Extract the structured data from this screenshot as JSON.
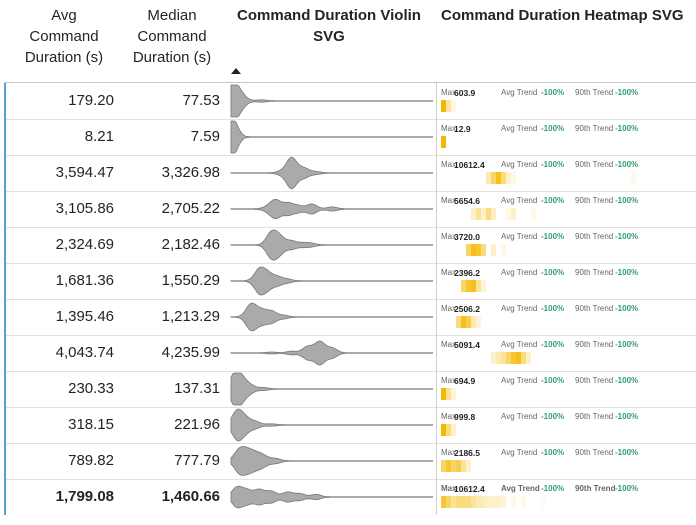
{
  "headers": {
    "avg": [
      "Avg",
      "Command",
      "Duration (s)"
    ],
    "median": [
      "Median",
      "Command",
      "Duration (s)"
    ],
    "violin": [
      "Command Duration Violin",
      "SVG"
    ],
    "heatmap": "Command Duration Heatmap SVG"
  },
  "labels": {
    "max": "Max",
    "avg_trend": "Avg Trend",
    "p90_trend": "90th Trend"
  },
  "colors": {
    "accent": "#55a0d6",
    "trend_green": "#2f9e6e",
    "heat": "#f5b800",
    "violin": "#aaaaaa"
  },
  "rows": [
    {
      "avg": "179.20",
      "median": "77.53",
      "max": "603.9",
      "avg_trend": "-100%",
      "p90_trend": "-100%",
      "violin": [
        [
          0.01,
          0.9
        ],
        [
          0.03,
          0.35
        ],
        [
          0.06,
          0.2
        ],
        [
          0.15,
          0.06
        ]
      ],
      "heat": [
        [
          0,
          1.0
        ],
        [
          1,
          0.35
        ],
        [
          2,
          0.1
        ]
      ]
    },
    {
      "avg": "8.21",
      "median": "7.59",
      "max": "12.9",
      "avg_trend": "-100%",
      "p90_trend": "-100%",
      "violin": [
        [
          0.005,
          1.0
        ],
        [
          0.015,
          0.2
        ]
      ],
      "heat": [
        [
          0,
          1.0
        ]
      ]
    },
    {
      "avg": "3,594.47",
      "median": "3,326.98",
      "max": "10612.4",
      "avg_trend": "-100%",
      "p90_trend": "-100%",
      "violin": [
        [
          0.3,
          0.95
        ],
        [
          0.36,
          0.3
        ],
        [
          0.42,
          0.08
        ],
        [
          0.25,
          0.1
        ]
      ],
      "heat": [
        [
          9,
          0.3
        ],
        [
          10,
          0.6
        ],
        [
          11,
          0.9
        ],
        [
          12,
          0.5
        ],
        [
          13,
          0.2
        ],
        [
          14,
          0.1
        ],
        [
          38,
          0.08
        ]
      ]
    },
    {
      "avg": "3,105.86",
      "median": "2,705.22",
      "max": "5654.6",
      "avg_trend": "-100%",
      "p90_trend": "-100%",
      "violin": [
        [
          0.22,
          0.55
        ],
        [
          0.28,
          0.35
        ],
        [
          0.33,
          0.2
        ],
        [
          0.4,
          0.3
        ],
        [
          0.5,
          0.12
        ],
        [
          0.18,
          0.1
        ]
      ],
      "heat": [
        [
          6,
          0.2
        ],
        [
          7,
          0.4
        ],
        [
          8,
          0.2
        ],
        [
          9,
          0.5
        ],
        [
          10,
          0.25
        ],
        [
          13,
          0.1
        ],
        [
          14,
          0.2
        ],
        [
          18,
          0.1
        ]
      ]
    },
    {
      "avg": "2,324.69",
      "median": "2,182.46",
      "max": "3720.0",
      "avg_trend": "-100%",
      "p90_trend": "-100%",
      "violin": [
        [
          0.2,
          0.75
        ],
        [
          0.24,
          0.5
        ],
        [
          0.3,
          0.25
        ],
        [
          0.36,
          0.12
        ],
        [
          0.4,
          0.08
        ]
      ],
      "heat": [
        [
          5,
          0.6
        ],
        [
          6,
          0.9
        ],
        [
          7,
          0.8
        ],
        [
          8,
          0.5
        ],
        [
          10,
          0.2
        ],
        [
          12,
          0.1
        ]
      ]
    },
    {
      "avg": "1,681.36",
      "median": "1,550.29",
      "max": "2396.2",
      "avg_trend": "-100%",
      "p90_trend": "-100%",
      "violin": [
        [
          0.14,
          0.7
        ],
        [
          0.18,
          0.45
        ],
        [
          0.23,
          0.25
        ],
        [
          0.28,
          0.1
        ]
      ],
      "heat": [
        [
          4,
          0.6
        ],
        [
          5,
          0.8
        ],
        [
          6,
          0.9
        ],
        [
          7,
          0.4
        ],
        [
          8,
          0.15
        ]
      ]
    },
    {
      "avg": "1,395.46",
      "median": "1,213.29",
      "max": "2506.2",
      "avg_trend": "-100%",
      "p90_trend": "-100%",
      "violin": [
        [
          0.1,
          0.8
        ],
        [
          0.15,
          0.4
        ],
        [
          0.2,
          0.35
        ],
        [
          0.26,
          0.1
        ]
      ],
      "heat": [
        [
          3,
          0.5
        ],
        [
          4,
          0.9
        ],
        [
          5,
          0.7
        ],
        [
          6,
          0.3
        ],
        [
          7,
          0.15
        ]
      ]
    },
    {
      "avg": "4,043.74",
      "median": "4,235.99",
      "max": "5091.4",
      "avg_trend": "-100%",
      "p90_trend": "-100%",
      "violin": [
        [
          0.38,
          0.4
        ],
        [
          0.44,
          0.7
        ],
        [
          0.5,
          0.3
        ],
        [
          0.3,
          0.1
        ],
        [
          0.2,
          0.05
        ]
      ],
      "heat": [
        [
          10,
          0.2
        ],
        [
          11,
          0.3
        ],
        [
          12,
          0.4
        ],
        [
          13,
          0.6
        ],
        [
          14,
          0.8
        ],
        [
          15,
          0.9
        ],
        [
          16,
          0.5
        ],
        [
          17,
          0.2
        ]
      ]
    },
    {
      "avg": "230.33",
      "median": "137.31",
      "max": "694.9",
      "avg_trend": "-100%",
      "p90_trend": "-100%",
      "violin": [
        [
          0.02,
          0.9
        ],
        [
          0.05,
          0.5
        ],
        [
          0.09,
          0.25
        ],
        [
          0.16,
          0.08
        ]
      ],
      "heat": [
        [
          0,
          1.0
        ],
        [
          1,
          0.4
        ],
        [
          2,
          0.15
        ]
      ]
    },
    {
      "avg": "318.15",
      "median": "221.96",
      "max": "999.8",
      "avg_trend": "-100%",
      "p90_trend": "-100%",
      "violin": [
        [
          0.03,
          0.85
        ],
        [
          0.07,
          0.4
        ],
        [
          0.12,
          0.2
        ],
        [
          0.2,
          0.06
        ]
      ],
      "heat": [
        [
          0,
          1.0
        ],
        [
          1,
          0.5
        ],
        [
          2,
          0.2
        ]
      ]
    },
    {
      "avg": "789.82",
      "median": "777.79",
      "max": "2186.5",
      "avg_trend": "-100%",
      "p90_trend": "-100%",
      "violin": [
        [
          0.04,
          0.65
        ],
        [
          0.08,
          0.55
        ],
        [
          0.12,
          0.4
        ],
        [
          0.16,
          0.3
        ],
        [
          0.22,
          0.15
        ]
      ],
      "heat": [
        [
          0,
          0.6
        ],
        [
          1,
          0.8
        ],
        [
          2,
          0.6
        ],
        [
          3,
          0.7
        ],
        [
          4,
          0.4
        ],
        [
          5,
          0.2
        ]
      ]
    },
    {
      "avg": "1,799.08",
      "median": "1,460.66",
      "max": "10612.4",
      "avg_trend": "-100%",
      "p90_trend": "-100%",
      "total": true,
      "violin": [
        [
          0.03,
          0.6
        ],
        [
          0.08,
          0.4
        ],
        [
          0.14,
          0.45
        ],
        [
          0.2,
          0.35
        ],
        [
          0.28,
          0.3
        ],
        [
          0.34,
          0.2
        ],
        [
          0.42,
          0.15
        ]
      ],
      "heat": [
        [
          0,
          0.8
        ],
        [
          1,
          0.6
        ],
        [
          2,
          0.4
        ],
        [
          3,
          0.5
        ],
        [
          4,
          0.5
        ],
        [
          5,
          0.5
        ],
        [
          6,
          0.4
        ],
        [
          7,
          0.3
        ],
        [
          8,
          0.25
        ],
        [
          9,
          0.2
        ],
        [
          10,
          0.2
        ],
        [
          11,
          0.2
        ],
        [
          12,
          0.15
        ],
        [
          14,
          0.1
        ],
        [
          16,
          0.08
        ],
        [
          20,
          0.05
        ]
      ]
    }
  ]
}
